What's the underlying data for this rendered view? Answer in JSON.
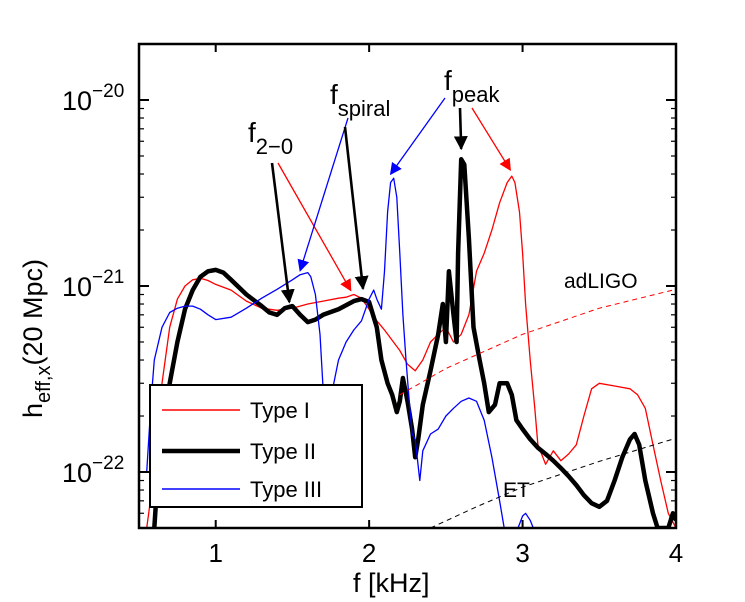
{
  "chart_data": {
    "type": "line",
    "xlabel": "f [kHz]",
    "ylabel": {
      "base": "h",
      "sub": "eff,x",
      "rest": "(20 Mpc)"
    },
    "x_scale": "linear",
    "y_scale": "log",
    "xlim": [
      0.5,
      4.0
    ],
    "ylim": [
      5e-23,
      2e-20
    ],
    "x_ticks": [
      1,
      2,
      3,
      4
    ],
    "y_ticks": [
      {
        "value": 1e-22,
        "base": "10",
        "exp": "−22"
      },
      {
        "value": 1e-21,
        "base": "10",
        "exp": "−21"
      },
      {
        "value": 1e-20,
        "base": "10",
        "exp": "−20"
      }
    ],
    "series": [
      {
        "name": "Type I",
        "color": "#ff0000",
        "style": "thin",
        "points": [
          [
            0.55,
            5e-23
          ],
          [
            0.6,
            1e-22
          ],
          [
            0.65,
            3e-22
          ],
          [
            0.7,
            6e-22
          ],
          [
            0.75,
            8.5e-22
          ],
          [
            0.8,
            1e-21
          ],
          [
            0.85,
            1.08e-21
          ],
          [
            0.9,
            1.1e-21
          ],
          [
            0.95,
            1.07e-21
          ],
          [
            1.0,
            1.02e-21
          ],
          [
            1.1,
            9.5e-22
          ],
          [
            1.2,
            8.3e-22
          ],
          [
            1.3,
            7.6e-22
          ],
          [
            1.4,
            7.4e-22
          ],
          [
            1.5,
            7.6e-22
          ],
          [
            1.6,
            8e-22
          ],
          [
            1.7,
            8.3e-22
          ],
          [
            1.8,
            8.6e-22
          ],
          [
            1.85,
            8.7e-22
          ],
          [
            1.9,
            9e-22
          ],
          [
            1.95,
            8.6e-22
          ],
          [
            2.0,
            7.5e-22
          ],
          [
            2.05,
            6.5e-22
          ],
          [
            2.1,
            5.8e-22
          ],
          [
            2.2,
            4.5e-22
          ],
          [
            2.25,
            3.8e-22
          ],
          [
            2.3,
            3.5e-22
          ],
          [
            2.35,
            4e-22
          ],
          [
            2.4,
            5e-22
          ],
          [
            2.45,
            5.5e-22
          ],
          [
            2.5,
            6e-22
          ],
          [
            2.55,
            5e-22
          ],
          [
            2.6,
            5.5e-22
          ],
          [
            2.65,
            7e-22
          ],
          [
            2.7,
            1.2e-21
          ],
          [
            2.75,
            1.5e-21
          ],
          [
            2.8,
            2e-21
          ],
          [
            2.85,
            2.8e-21
          ],
          [
            2.9,
            3.6e-21
          ],
          [
            2.93,
            3.9e-21
          ],
          [
            2.95,
            3.6e-21
          ],
          [
            2.98,
            2.5e-21
          ],
          [
            3.0,
            1.5e-21
          ],
          [
            3.02,
            8e-22
          ],
          [
            3.05,
            4e-22
          ],
          [
            3.08,
            2.2e-22
          ],
          [
            3.1,
            1.4e-22
          ],
          [
            3.15,
            1.1e-22
          ],
          [
            3.2,
            1.3e-22
          ],
          [
            3.25,
            1.15e-22
          ],
          [
            3.3,
            1.25e-22
          ],
          [
            3.35,
            1.4e-22
          ],
          [
            3.4,
            2e-22
          ],
          [
            3.45,
            2.8e-22
          ],
          [
            3.5,
            3e-22
          ],
          [
            3.6,
            2.9e-22
          ],
          [
            3.7,
            2.8e-22
          ],
          [
            3.75,
            2.6e-22
          ],
          [
            3.8,
            2.2e-22
          ],
          [
            3.85,
            1.4e-22
          ],
          [
            3.9,
            9e-23
          ],
          [
            3.95,
            6e-23
          ],
          [
            4.0,
            5e-23
          ]
        ]
      },
      {
        "name": "Type II",
        "color": "#000000",
        "style": "thick",
        "points": [
          [
            0.6,
            5e-23
          ],
          [
            0.62,
            9e-23
          ],
          [
            0.65,
            1.6e-22
          ],
          [
            0.7,
            3e-22
          ],
          [
            0.75,
            5e-22
          ],
          [
            0.8,
            7.5e-22
          ],
          [
            0.85,
            9.5e-22
          ],
          [
            0.9,
            1.12e-21
          ],
          [
            0.95,
            1.2e-21
          ],
          [
            1.0,
            1.22e-21
          ],
          [
            1.05,
            1.18e-21
          ],
          [
            1.1,
            1.08e-21
          ],
          [
            1.2,
            9e-22
          ],
          [
            1.3,
            7.8e-22
          ],
          [
            1.35,
            7.2e-22
          ],
          [
            1.4,
            7e-22
          ],
          [
            1.45,
            7.6e-22
          ],
          [
            1.5,
            7.8e-22
          ],
          [
            1.55,
            7e-22
          ],
          [
            1.6,
            6.4e-22
          ],
          [
            1.65,
            6.6e-22
          ],
          [
            1.7,
            7e-22
          ],
          [
            1.8,
            7.5e-22
          ],
          [
            1.9,
            8.3e-22
          ],
          [
            1.95,
            8.5e-22
          ],
          [
            2.0,
            8.2e-22
          ],
          [
            2.05,
            6e-22
          ],
          [
            2.08,
            4e-22
          ],
          [
            2.12,
            3e-22
          ],
          [
            2.15,
            2.6e-22
          ],
          [
            2.18,
            2.1e-22
          ],
          [
            2.2,
            2.4e-22
          ],
          [
            2.22,
            3.2e-22
          ],
          [
            2.25,
            2.4e-22
          ],
          [
            2.28,
            1.7e-22
          ],
          [
            2.3,
            1.2e-22
          ],
          [
            2.32,
            1.5e-22
          ],
          [
            2.35,
            2.3e-22
          ],
          [
            2.4,
            3.5e-22
          ],
          [
            2.45,
            5.5e-22
          ],
          [
            2.48,
            8e-22
          ],
          [
            2.5,
            5e-22
          ],
          [
            2.52,
            1.2e-21
          ],
          [
            2.55,
            7e-22
          ],
          [
            2.57,
            5e-22
          ],
          [
            2.58,
            1.5e-21
          ],
          [
            2.6,
            4.8e-21
          ],
          [
            2.62,
            4.5e-21
          ],
          [
            2.65,
            1.8e-21
          ],
          [
            2.68,
            6e-22
          ],
          [
            2.72,
            4e-22
          ],
          [
            2.75,
            3e-22
          ],
          [
            2.78,
            2.1e-22
          ],
          [
            2.82,
            2.3e-22
          ],
          [
            2.85,
            3e-22
          ],
          [
            2.9,
            3e-22
          ],
          [
            2.93,
            2.6e-22
          ],
          [
            2.96,
            1.9e-22
          ],
          [
            3.0,
            1.7e-22
          ],
          [
            3.05,
            1.5e-22
          ],
          [
            3.1,
            1.35e-22
          ],
          [
            3.15,
            1.25e-22
          ],
          [
            3.2,
            1.15e-22
          ],
          [
            3.25,
            1.05e-22
          ],
          [
            3.3,
            9.5e-23
          ],
          [
            3.35,
            8.5e-23
          ],
          [
            3.4,
            7.5e-23
          ],
          [
            3.45,
            6.8e-23
          ],
          [
            3.5,
            6.5e-23
          ],
          [
            3.55,
            7e-23
          ],
          [
            3.6,
            9e-23
          ],
          [
            3.65,
            1.2e-22
          ],
          [
            3.7,
            1.5e-22
          ],
          [
            3.73,
            1.6e-22
          ],
          [
            3.76,
            1.4e-22
          ],
          [
            3.8,
            9e-23
          ],
          [
            3.85,
            6e-23
          ],
          [
            3.88,
            5e-23
          ],
          [
            3.95,
            5e-23
          ],
          [
            3.98,
            6e-23
          ],
          [
            4.0,
            5.5e-23
          ]
        ]
      },
      {
        "name": "Type III",
        "color": "#0000ff",
        "style": "thin",
        "points": [
          [
            0.55,
            1e-22
          ],
          [
            0.58,
            2.5e-22
          ],
          [
            0.6,
            4e-22
          ],
          [
            0.65,
            6e-22
          ],
          [
            0.7,
            7.2e-22
          ],
          [
            0.75,
            7.6e-22
          ],
          [
            0.8,
            7.8e-22
          ],
          [
            0.85,
            7.8e-22
          ],
          [
            0.9,
            7.5e-22
          ],
          [
            0.95,
            7e-22
          ],
          [
            1.0,
            6.6e-22
          ],
          [
            1.1,
            6.8e-22
          ],
          [
            1.2,
            7.6e-22
          ],
          [
            1.3,
            8.6e-22
          ],
          [
            1.4,
            9.6e-22
          ],
          [
            1.5,
            1.08e-21
          ],
          [
            1.55,
            1.15e-21
          ],
          [
            1.6,
            1.18e-21
          ],
          [
            1.62,
            1.12e-21
          ],
          [
            1.65,
            9e-22
          ],
          [
            1.68,
            5.5e-22
          ],
          [
            1.7,
            2.8e-22
          ],
          [
            1.72,
            1.8e-22
          ],
          [
            1.75,
            2.5e-22
          ],
          [
            1.8,
            4e-22
          ],
          [
            1.85,
            5e-22
          ],
          [
            1.9,
            5.8e-22
          ],
          [
            1.95,
            6.5e-22
          ],
          [
            2.0,
            8.5e-22
          ],
          [
            2.03,
            9.5e-22
          ],
          [
            2.05,
            8.5e-22
          ],
          [
            2.08,
            7.5e-22
          ],
          [
            2.1,
            1.2e-21
          ],
          [
            2.12,
            2.5e-21
          ],
          [
            2.14,
            3.6e-21
          ],
          [
            2.16,
            3.8e-21
          ],
          [
            2.18,
            3e-21
          ],
          [
            2.2,
            1.5e-21
          ],
          [
            2.22,
            7e-22
          ],
          [
            2.24,
            4e-22
          ],
          [
            2.26,
            2.5e-22
          ],
          [
            2.28,
            1.6e-22
          ],
          [
            2.3,
            1.5e-22
          ],
          [
            2.33,
            9e-23
          ],
          [
            2.35,
            1.3e-22
          ],
          [
            2.4,
            1.6e-22
          ],
          [
            2.45,
            1.7e-22
          ],
          [
            2.5,
            2e-22
          ],
          [
            2.55,
            2.2e-22
          ],
          [
            2.6,
            2.4e-22
          ],
          [
            2.65,
            2.5e-22
          ],
          [
            2.7,
            2.4e-22
          ],
          [
            2.75,
            1.9e-22
          ],
          [
            2.8,
            1.2e-22
          ],
          [
            2.85,
            7e-23
          ],
          [
            2.88,
            5e-23
          ],
          [
            2.97,
            5e-23
          ],
          [
            3.0,
            5.8e-23
          ],
          [
            3.02,
            6e-23
          ],
          [
            3.05,
            5.5e-23
          ],
          [
            3.07,
            5e-23
          ]
        ]
      },
      {
        "name": "adLIGO",
        "color": "#ff0000",
        "style": "dashed",
        "points": [
          [
            2.2,
            2.6e-22
          ],
          [
            2.5,
            3.6e-22
          ],
          [
            3.0,
            5.5e-22
          ],
          [
            3.5,
            7.6e-22
          ],
          [
            4.0,
            9.6e-22
          ]
        ]
      },
      {
        "name": "ET",
        "color": "#000000",
        "style": "dashed",
        "points": [
          [
            2.4,
            5e-23
          ],
          [
            2.7,
            6.5e-23
          ],
          [
            3.0,
            8.3e-23
          ],
          [
            3.5,
            1.14e-22
          ],
          [
            4.0,
            1.52e-22
          ]
        ]
      }
    ],
    "legend": {
      "position": "bottom-left",
      "entries": [
        {
          "label": "Type I",
          "color": "#ff0000",
          "style": "thin"
        },
        {
          "label": "Type II",
          "color": "#000000",
          "style": "thick"
        },
        {
          "label": "Type III",
          "color": "#0000ff",
          "style": "thin"
        }
      ]
    },
    "annotations": {
      "curve_labels": {
        "adligo": "adLIGO",
        "et": "ET"
      },
      "f_peak": {
        "base": "f",
        "sub": "peak"
      },
      "f_spiral": {
        "base": "f",
        "sub": "spiral"
      },
      "f_20": {
        "base": "f",
        "sub": "2−0"
      },
      "arrows": [
        {
          "label": "f_20",
          "color": "#000000",
          "target": [
            1.48,
            7.8e-22
          ]
        },
        {
          "label": "f_20",
          "color": "#ff0000",
          "target": [
            1.88,
            9e-22
          ]
        },
        {
          "label": "f_spiral",
          "color": "#0000ff",
          "target": [
            1.55,
            1.15e-21
          ]
        },
        {
          "label": "f_spiral",
          "color": "#000000",
          "target": [
            1.96,
            9.2e-22
          ]
        },
        {
          "label": "f_peak",
          "color": "#0000ff",
          "target": [
            2.14,
            3.8e-21
          ]
        },
        {
          "label": "f_peak",
          "color": "#000000",
          "target": [
            2.6,
            5.2e-21
          ]
        },
        {
          "label": "f_peak",
          "color": "#ff0000",
          "target": [
            2.92,
            4e-21
          ]
        }
      ]
    }
  }
}
